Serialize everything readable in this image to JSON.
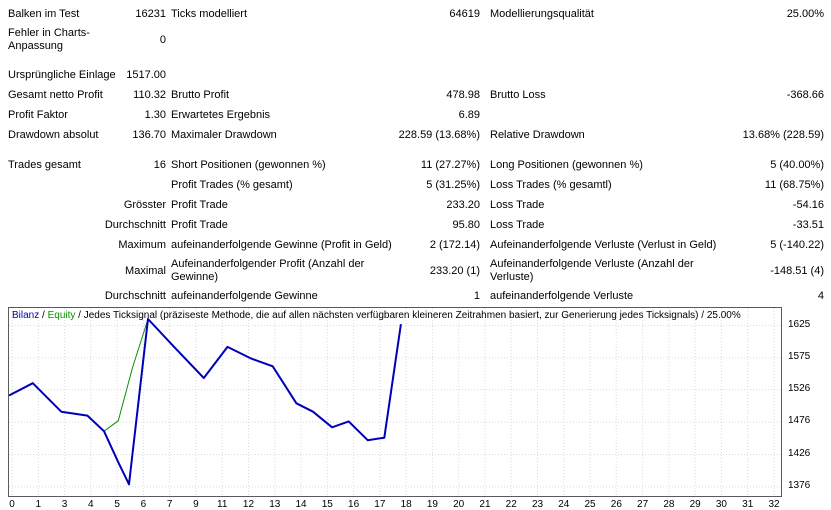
{
  "report": {
    "rows": [
      [
        "Balken im Test",
        "16231",
        "Ticks modelliert",
        "64619",
        "Modellierungsqualität",
        "25.00%"
      ],
      [
        "Fehler in Charts-Anpassung",
        "0",
        "",
        "",
        "",
        ""
      ],
      [
        "Ursprüngliche Einlage",
        "1517.00",
        "",
        "",
        "",
        ""
      ],
      [
        "Gesamt netto Profit",
        "110.32",
        "Brutto Profit",
        "478.98",
        "Brutto Loss",
        "-368.66"
      ],
      [
        "Profit Faktor",
        "1.30",
        "Erwartetes Ergebnis",
        "6.89",
        "",
        ""
      ],
      [
        "Drawdown absolut",
        "136.70",
        "Maximaler Drawdown",
        "228.59 (13.68%)",
        "Relative Drawdown",
        "13.68% (228.59)"
      ],
      [
        "Trades gesamt",
        "16",
        "Short Positionen (gewonnen %)",
        "11 (27.27%)",
        "Long Positionen (gewonnen %)",
        "5 (40.00%)"
      ],
      [
        "",
        "",
        "Profit Trades (% gesamt)",
        "5 (31.25%)",
        "Loss Trades (% gesamtl)",
        "11 (68.75%)"
      ],
      [
        "",
        "Grösster",
        "Profit Trade",
        "233.20",
        "Loss Trade",
        "-54.16"
      ],
      [
        "",
        "Durchschnitt",
        "Profit Trade",
        "95.80",
        "Loss Trade",
        "-33.51"
      ],
      [
        "",
        "Maximum",
        "aufeinanderfolgende Gewinne (Profit in Geld)",
        "2 (172.14)",
        "Aufeinanderfolgende Verluste (Verlust in Geld)",
        "5 (-140.22)"
      ],
      [
        "",
        "Maximal",
        "Aufeinanderfolgender Profit (Anzahl der Gewinne)",
        "233.20 (1)",
        "Aufeinanderfolgende Verluste (Anzahl der Verluste)",
        "-148.51 (4)"
      ],
      [
        "",
        "Durchschnitt",
        "aufeinanderfolgende Gewinne",
        "1",
        "aufeinanderfolgende Verluste",
        "4"
      ]
    ]
  },
  "chart_data": {
    "type": "line",
    "legend": {
      "balance": "Bilanz",
      "equity": "Equity",
      "separator": " / ",
      "subtitle": "Jedes Ticksignal (präziseste Methode, die auf allen nächsten verfügbaren kleineren Zeitrahmen basiert, zur Generierung jedes Ticksignals) / 25.00%"
    },
    "xlabel": "",
    "ylabel": "",
    "xlim": [
      0,
      32.5
    ],
    "ylim": [
      1362,
      1652
    ],
    "y_ticks": [
      "1625",
      "1575",
      "1526",
      "1476",
      "1426",
      "1376"
    ],
    "x_ticks": [
      "0",
      "1",
      "3",
      "4",
      "5",
      "6",
      "7",
      "9",
      "11",
      "12",
      "13",
      "14",
      "15",
      "16",
      "17",
      "18",
      "19",
      "20",
      "21",
      "22",
      "23",
      "24",
      "25",
      "26",
      "27",
      "28",
      "29",
      "30",
      "31",
      "32"
    ],
    "grid": true,
    "series": [
      {
        "name": "Bilanz",
        "color": "#0000b8",
        "width": 2,
        "x": [
          0,
          1.0,
          2.2,
          3.3,
          4.0,
          4.6,
          5.05,
          5.85,
          7.0,
          8.2,
          9.2,
          10.2,
          11.1,
          12.1,
          12.8,
          13.6,
          14.3,
          15.1,
          15.8,
          16.5
        ],
        "y": [
          1517,
          1536,
          1492,
          1486,
          1462,
          1414,
          1380,
          1635,
          1590,
          1544,
          1592,
          1574,
          1562,
          1505,
          1492,
          1468,
          1477,
          1448,
          1452,
          1627
        ]
      },
      {
        "name": "Equity",
        "color": "#089000",
        "width": 1,
        "x": [
          4.0,
          4.6,
          5.2,
          5.85
        ],
        "y": [
          1462,
          1478,
          1560,
          1635
        ]
      }
    ]
  }
}
